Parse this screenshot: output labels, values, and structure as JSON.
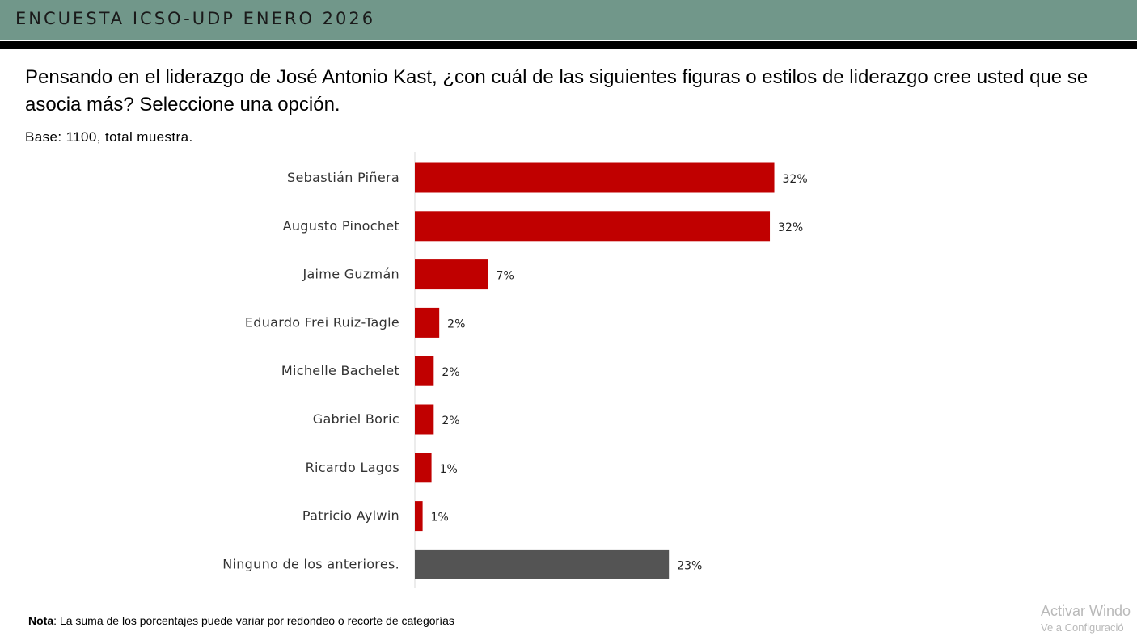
{
  "header": {
    "title": "ENCUESTA ICSO-UDP ENERO 2026"
  },
  "question": "Pensando en el liderazgo de José Antonio Kast, ¿con cuál de las siguientes figuras o estilos de liderazgo cree usted que se asocia más? Seleccione una opción.",
  "base_note": "Base: 1100, total muestra.",
  "footnote": {
    "bold": "Nota",
    "text": ": La suma de los porcentajes puede variar por redondeo o recorte de categorías"
  },
  "watermark": {
    "line1": "Activar Windo",
    "line2": "Ve a Configuració"
  },
  "colors": {
    "header_bg": "#71978a",
    "bar_primary": "#c00000",
    "bar_none": "#545454"
  },
  "chart_data": {
    "type": "bar",
    "orientation": "horizontal",
    "categories": [
      "Sebastián Piñera",
      "Augusto Pinochet",
      "Jaime Guzmán",
      "Eduardo Frei Ruiz-Tagle",
      "Michelle Bachelet",
      "Gabriel Boric",
      "Ricardo Lagos",
      "Patricio Aylwin",
      "Ninguno de los anteriores."
    ],
    "values": [
      32.4,
      32.0,
      6.6,
      2.2,
      1.7,
      1.7,
      1.5,
      0.7,
      22.9
    ],
    "data_labels": [
      "32%",
      "32%",
      "7%",
      "2%",
      "2%",
      "2%",
      "1%",
      "1%",
      "23%"
    ],
    "bar_colors": [
      "#c00000",
      "#c00000",
      "#c00000",
      "#c00000",
      "#c00000",
      "#c00000",
      "#c00000",
      "#c00000",
      "#545454"
    ],
    "xlim": [
      0,
      40
    ],
    "unit": "%",
    "grid": false,
    "legend": "none"
  }
}
